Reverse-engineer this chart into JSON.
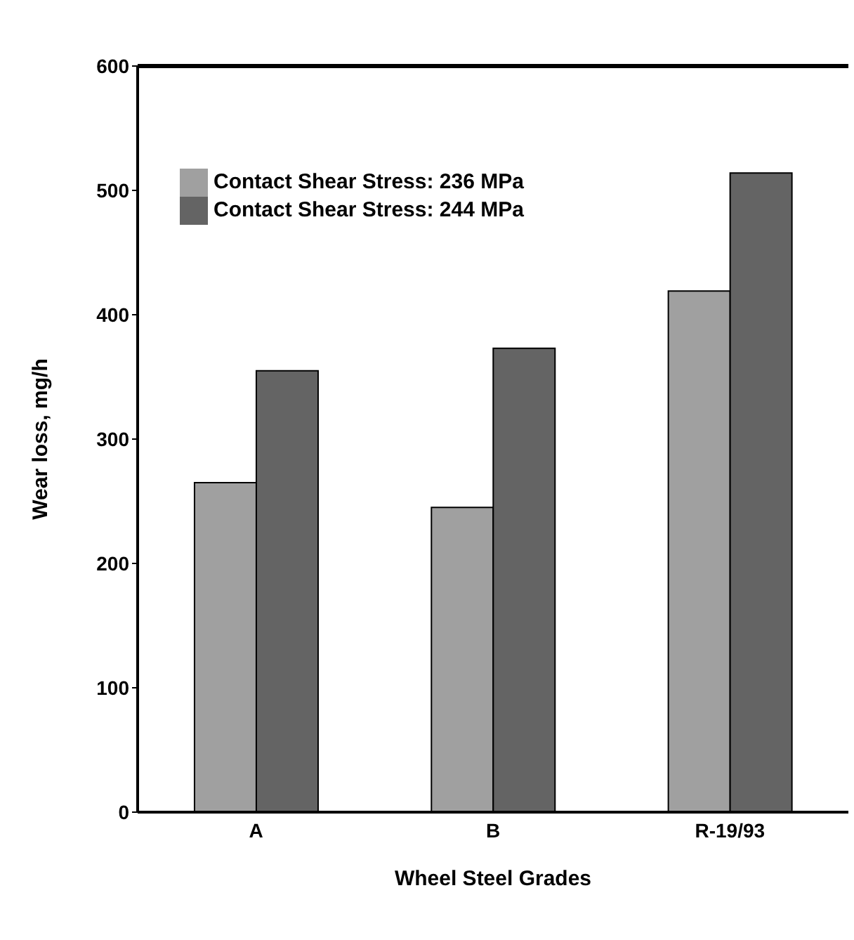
{
  "chart_data": {
    "type": "bar",
    "xlabel": "Wheel Steel Grades",
    "ylabel": "Wear loss, mg/h",
    "categories": [
      "A",
      "B",
      "R-19/93"
    ],
    "series": [
      {
        "name": "Contact Shear Stress: 236 MPa",
        "color": "#a0a0a0",
        "values": [
          265,
          245,
          419
        ]
      },
      {
        "name": "Contact Shear Stress: 244 MPa",
        "color": "#646464",
        "values": [
          355,
          373,
          514
        ]
      }
    ],
    "ylim": [
      0,
      600
    ],
    "yticks": [
      0,
      100,
      200,
      300,
      400,
      500,
      600
    ],
    "grid": false,
    "legend": "top left"
  }
}
